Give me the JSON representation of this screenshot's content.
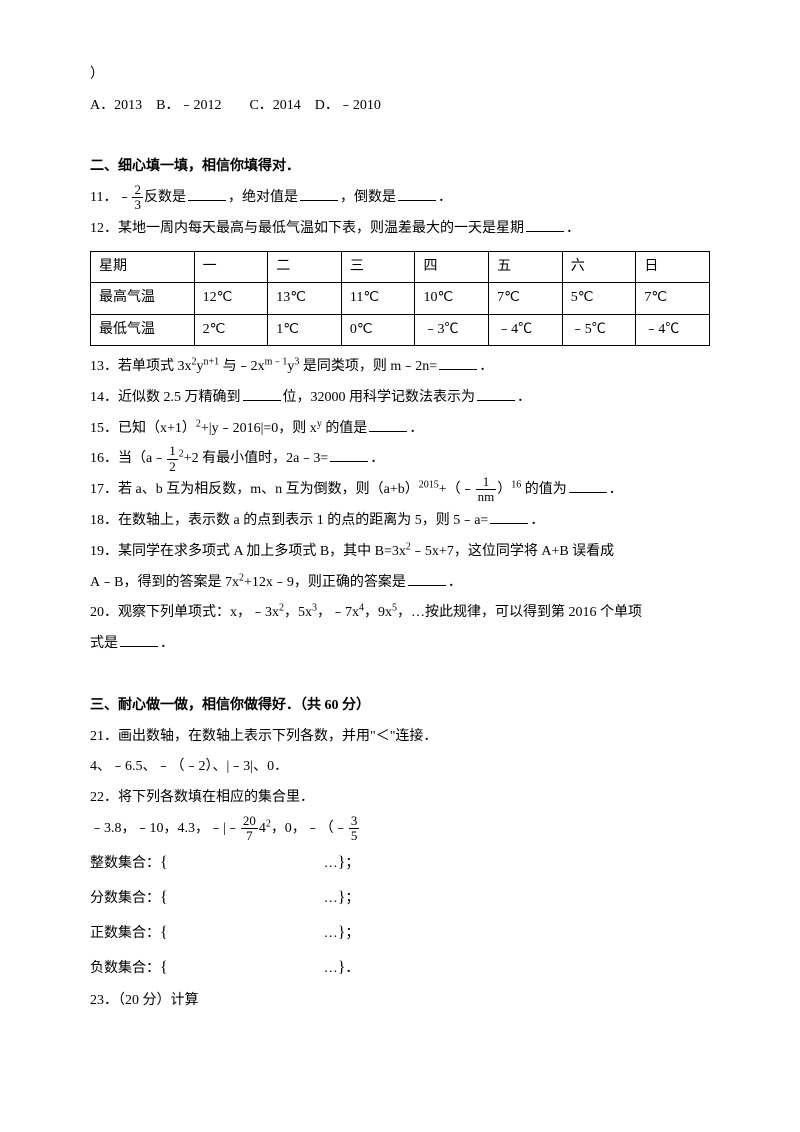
{
  "q10_tail": "）",
  "q10_options": "A．2013　B．﹣2012　　C．2014　D．﹣2010",
  "section2_title": "二、细心填一填，相信你填得对．",
  "q11_a": "11．﹣",
  "q11_frac_num": "2",
  "q11_frac_den": "3",
  "q11_b": "反数是",
  "q11_c": "，绝对值是",
  "q11_d": "，倒数是",
  "q11_e": "．",
  "q12_text": "12．某地一周内每天最高与最低气温如下表，则温差最大的一天是星期",
  "q12_end": "．",
  "table": {
    "header": [
      "星期",
      "一",
      "二",
      "三",
      "四",
      "五",
      "六",
      "日"
    ],
    "rows": [
      [
        "最高气温",
        "12℃",
        "13℃",
        "11℃",
        "10℃",
        "7℃",
        "5℃",
        "7℃"
      ],
      [
        "最低气温",
        "2℃",
        "1℃",
        "0℃",
        "﹣3℃",
        "﹣4℃",
        "﹣5℃",
        "﹣4℃"
      ]
    ]
  },
  "q13_a": "13．若单项式 3x",
  "q13_sup1": "2",
  "q13_b": "y",
  "q13_sup2": "n+1",
  "q13_c": " 与﹣2x",
  "q13_sup3": "m﹣1",
  "q13_d": "y",
  "q13_sup4": "3",
  "q13_e": " 是同类项，则 m﹣2n=",
  "q13_f": "．",
  "q14_a": "14．近似数 2.5 万精确到",
  "q14_b": "位，32000 用科学记数法表示为",
  "q14_c": "．",
  "q15_a": "15．已知（x+1）",
  "q15_sup1": "2",
  "q15_b": "+|y﹣2016|=0，则 x",
  "q15_sup2": "y",
  "q15_c": " 的值是",
  "q15_d": "．",
  "q16_a": "16．当（a﹣",
  "q16_frac_num": "1",
  "q16_frac_den": "2",
  "q16_b": "2",
  "q16_c": "+2 有最小值时，2a﹣3=",
  "q16_d": "．",
  "q17_a": "17．若 a、b 互为相反数，m、n 互为倒数，则（a+b）",
  "q17_sup1": "2015",
  "q17_b": "+（﹣",
  "q17_frac_num": "1",
  "q17_frac_den": "nm",
  "q17_c": "）",
  "q17_sup2": "16",
  "q17_d": " 的值为",
  "q17_e": "．",
  "q18_a": "18．在数轴上，表示数 a 的点到表示 1 的点的距离为 5，则 5﹣a=",
  "q18_b": "．",
  "q19_a": "19．某同学在求多项式 A 加上多项式 B，其中 B=3x",
  "q19_sup1": "2",
  "q19_b": "﹣5x+7，这位同学将 A+B 误看成",
  "q19_c": "A﹣B，得到的答案是 7x",
  "q19_sup2": "2",
  "q19_d": "+12x﹣9，则正确的答案是",
  "q19_e": "．",
  "q20_a": "20．观察下列单项式：x，﹣3x",
  "q20_sup1": "2",
  "q20_b": "，5x",
  "q20_sup2": "3",
  "q20_c": "，﹣7x",
  "q20_sup3": "4",
  "q20_d": "，9x",
  "q20_sup4": "5",
  "q20_e": "，…按此规律，可以得到第 2016 个单项",
  "q20_f": "式是",
  "q20_g": "．",
  "section3_title": "三、耐心做一做，相信你做得好．（共 60 分）",
  "q21_a": "21．画出数轴，在数轴上表示下列各数，并用\"＜\"连接．",
  "q21_b": "4、﹣6.5、﹣（﹣2）、|﹣3|、0．",
  "q22_a": "22．将下列各数填在相应的集合里．",
  "q22_b_1": "﹣3.8，﹣10，4.3，﹣|﹣",
  "q22_frac1_num": "20",
  "q22_frac1_den": "7",
  "q22_b_2": "4",
  "q22_sup1": "2",
  "q22_b_3": "，0，﹣（﹣",
  "q22_frac2_num": "3",
  "q22_frac2_den": "5",
  "sets": [
    {
      "label": "整数集合：",
      "dots": "…",
      "close": "；"
    },
    {
      "label": "分数集合：",
      "dots": "…",
      "close": "；"
    },
    {
      "label": "正数集合：",
      "dots": "…",
      "close": "；"
    },
    {
      "label": "负数集合：",
      "dots": "…",
      "close": "．"
    }
  ],
  "q23": "23．（20 分）计算"
}
